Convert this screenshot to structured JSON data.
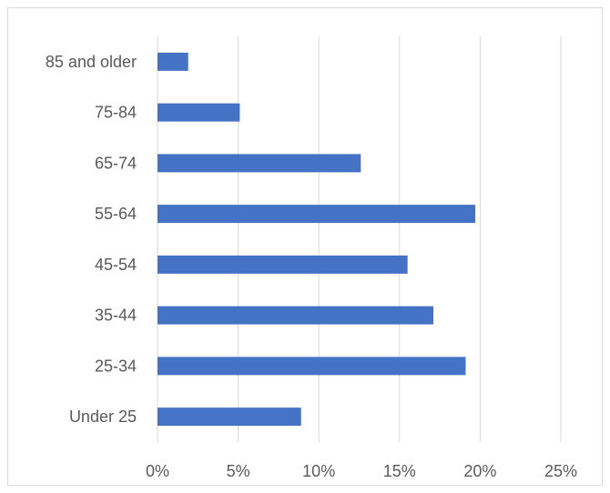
{
  "chart_data": {
    "type": "bar",
    "orientation": "horizontal",
    "title": "",
    "xlabel": "",
    "ylabel": "",
    "categories": [
      "85 and older",
      "75-84",
      "65-74",
      "55-64",
      "45-54",
      "35-44",
      "25-34",
      "Under 25"
    ],
    "values": [
      1.9,
      5.1,
      12.6,
      19.7,
      15.5,
      17.1,
      19.1,
      8.9
    ],
    "xlim": [
      0,
      25
    ],
    "x_ticks": [
      "0%",
      "5%",
      "10%",
      "15%",
      "20%",
      "25%"
    ],
    "grid": "vertical",
    "legend": "none",
    "bar_color": "#4472c4",
    "grid_color": "#d9d9d9"
  }
}
